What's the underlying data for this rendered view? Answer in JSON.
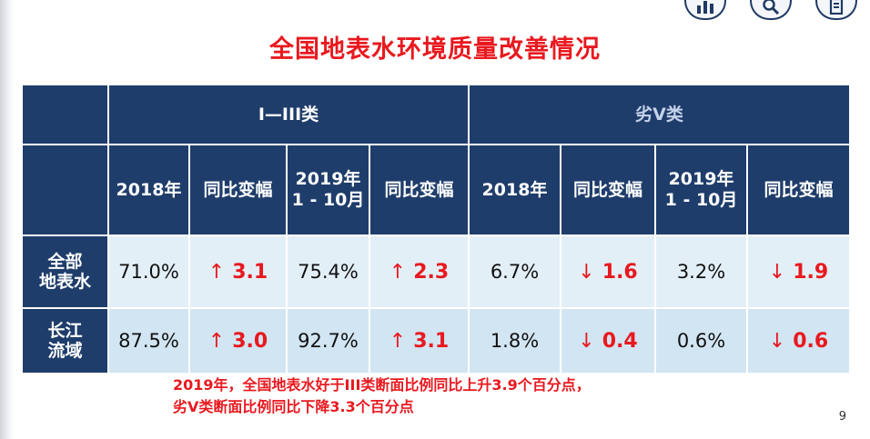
{
  "slide": {
    "title": "全国地表水环境质量改善情况",
    "page_number": "9",
    "note_lines": [
      "2019年，全国地表水好于III类断面比例同比上升3.9个百分点，",
      "劣V类断面比例同比下降3.3个百分点"
    ],
    "accent_color": "#e8191f",
    "header_color": "#1f3d6b"
  },
  "nav_icons": [
    "bar-chart-icon",
    "search-icon",
    "document-icon"
  ],
  "table": {
    "group_headers": [
      "I—III类",
      "劣V类"
    ],
    "columns": [
      "2018年",
      "同比变幅",
      "2019年\n1 - 10月",
      "同比变幅",
      "2018年",
      "同比变幅",
      "2019年\n1 - 10月",
      "同比变幅"
    ],
    "rows": [
      {
        "label": "全部\n地表水",
        "cells": [
          {
            "value": "71.0%"
          },
          {
            "arrow": "↑",
            "value": "3.1"
          },
          {
            "value": "75.4%"
          },
          {
            "arrow": "↑",
            "value": "2.3"
          },
          {
            "value": "6.7%"
          },
          {
            "arrow": "↓",
            "value": "1.6"
          },
          {
            "value": "3.2%"
          },
          {
            "arrow": "↓",
            "value": "1.9"
          }
        ]
      },
      {
        "label": "长江\n流域",
        "cells": [
          {
            "value": "87.5%"
          },
          {
            "arrow": "↑",
            "value": "3.0"
          },
          {
            "value": "92.7%"
          },
          {
            "arrow": "↑",
            "value": "3.1"
          },
          {
            "value": "1.8%"
          },
          {
            "arrow": "↓",
            "value": "0.4"
          },
          {
            "value": "0.6%"
          },
          {
            "arrow": "↓",
            "value": "0.6"
          }
        ]
      }
    ]
  }
}
